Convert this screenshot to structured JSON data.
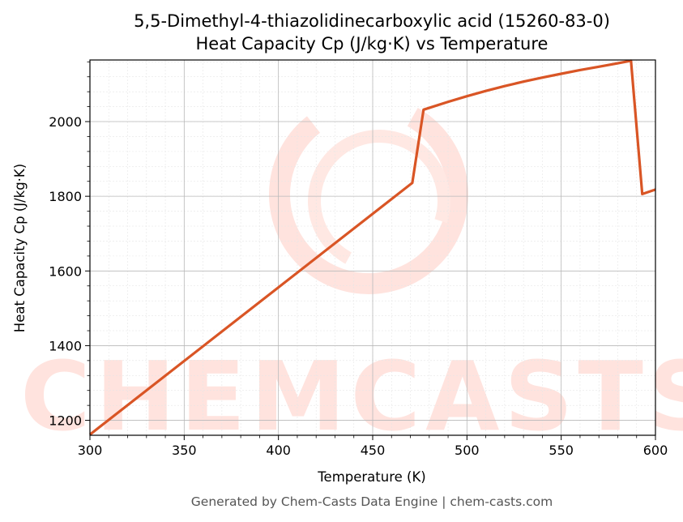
{
  "chart_data": {
    "type": "line",
    "title": "5,5-Dimethyl-4-thiazolidinecarboxylic acid (15260-83-0)",
    "subtitle": "Heat Capacity Cp (J/kg·K) vs Temperature",
    "xlabel": "Temperature (K)",
    "ylabel": "Heat Capacity Cp (J/kg·K)",
    "xlim": [
      300,
      600
    ],
    "ylim": [
      1160,
      2165
    ],
    "x_ticks": [
      300,
      350,
      400,
      450,
      500,
      550,
      600
    ],
    "y_ticks": [
      1200,
      1400,
      1600,
      1800,
      2000
    ],
    "grid": true,
    "series": [
      {
        "color": "#d95525",
        "x": [
          300,
          471,
          477,
          490,
          500,
          510,
          520,
          530,
          540,
          550,
          560,
          570,
          580,
          587,
          593,
          600
        ],
        "y": [
          1162,
          1836,
          2032,
          2053,
          2068,
          2082,
          2095,
          2107,
          2118,
          2128,
          2138,
          2147,
          2156,
          2163,
          1806,
          1818
        ]
      }
    ]
  },
  "watermark": {
    "text": "CHEMCASTS",
    "color": "#ffe3de"
  },
  "footer": "Generated by Chem-Casts Data Engine | chem-casts.com"
}
